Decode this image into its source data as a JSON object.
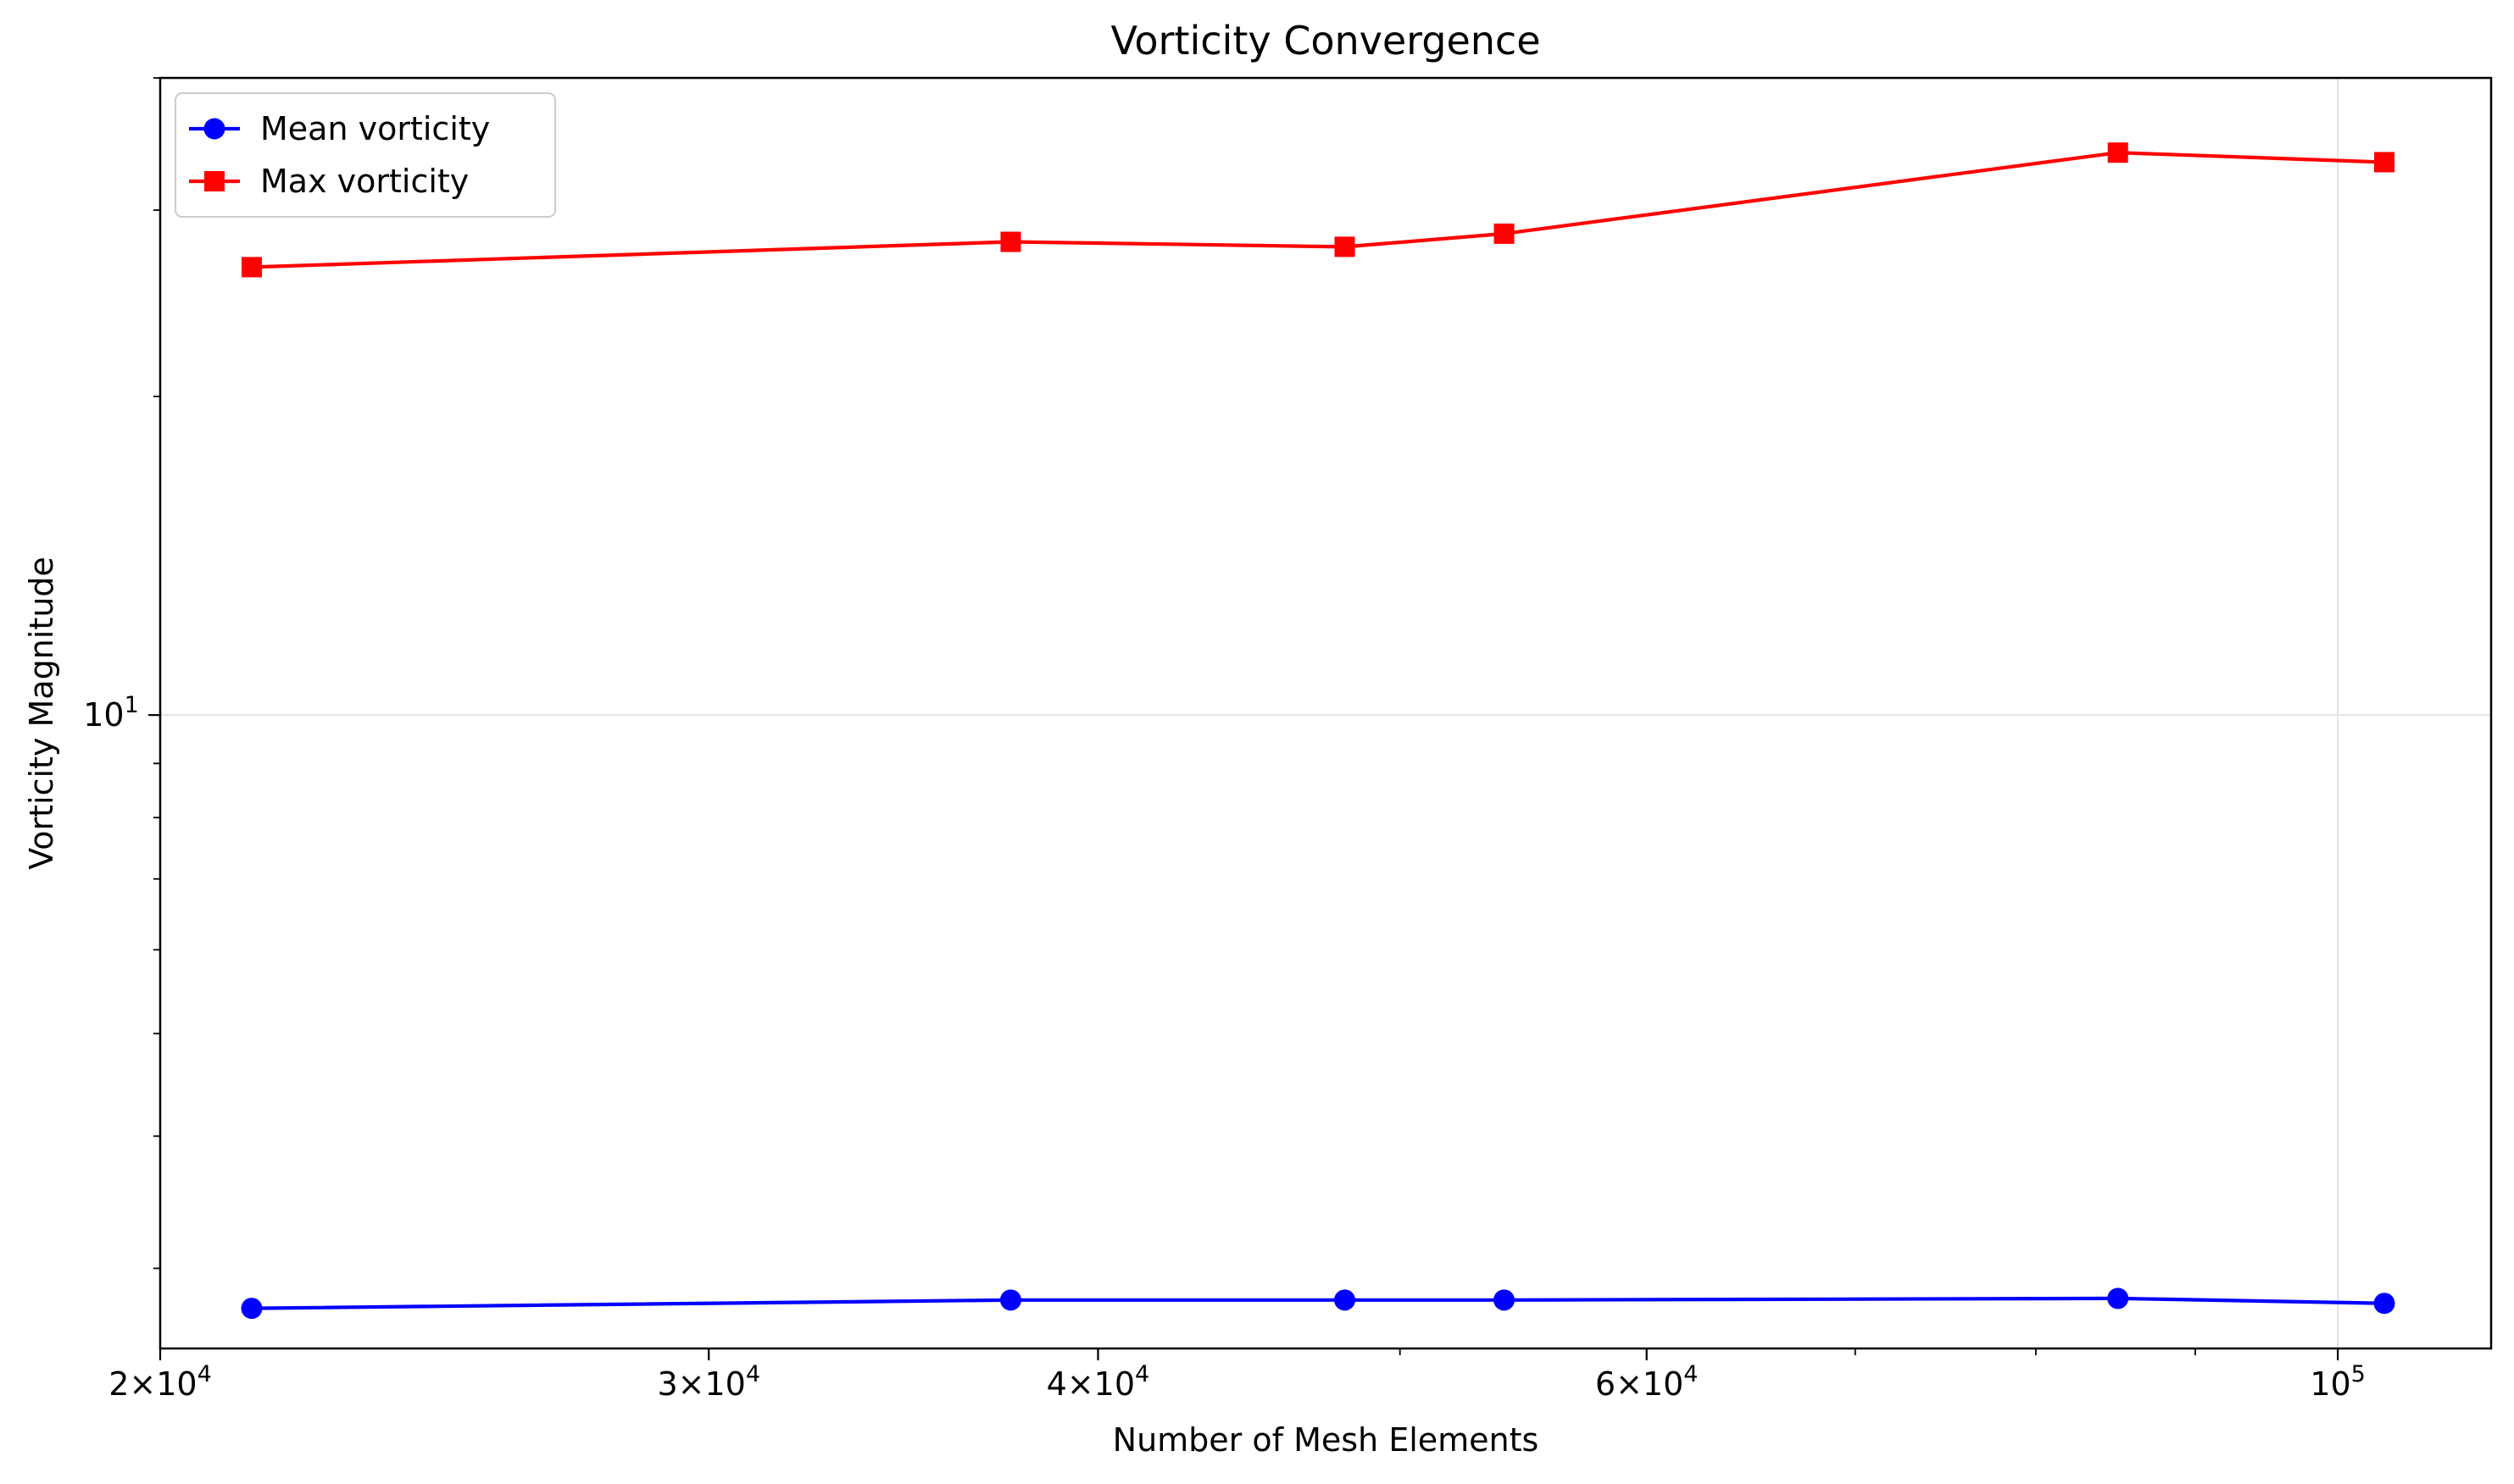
{
  "chart_data": {
    "type": "line",
    "title": "Vorticity Convergence",
    "xlabel": "Number of Mesh Elements",
    "ylabel": "Vorticity Magnitude",
    "xscale": "log",
    "yscale": "log",
    "xlim": [
      20000,
      112000
    ],
    "ylim": [
      2.52,
      40
    ],
    "grid": true,
    "legend_position": "upper-left",
    "x": [
      21400,
      37500,
      48000,
      54000,
      85000,
      103500
    ],
    "series": [
      {
        "name": "Mean vorticity",
        "color": "#0000ff",
        "marker": "circle",
        "values": [
          2.75,
          2.8,
          2.8,
          2.8,
          2.81,
          2.78
        ]
      },
      {
        "name": "Max vorticity",
        "color": "#ff0000",
        "marker": "square",
        "values": [
          26.5,
          28.0,
          27.7,
          28.5,
          34.0,
          33.3
        ]
      }
    ],
    "x_ticks": [
      {
        "value": 20000,
        "mant": "2",
        "exp": "4"
      },
      {
        "value": 30000,
        "mant": "3",
        "exp": "4"
      },
      {
        "value": 40000,
        "mant": "4",
        "exp": "4"
      },
      {
        "value": 60000,
        "mant": "6",
        "exp": "4"
      },
      {
        "value": 100000,
        "mant": "",
        "exp": "5"
      }
    ],
    "y_ticks": [
      {
        "value": 10,
        "mant": "",
        "exp": "1"
      }
    ]
  }
}
